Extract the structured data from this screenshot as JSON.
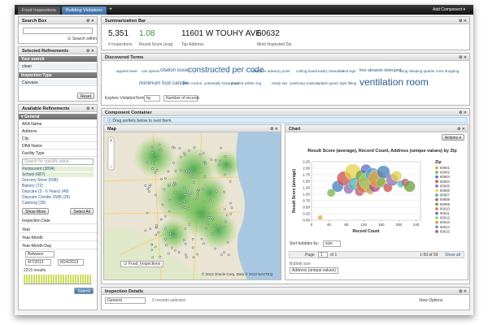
{
  "tabs": [
    "Food Inspections",
    "Building Violations"
  ],
  "add_component": "Add Component",
  "search_box": {
    "title": "Search Box",
    "search_within": "Search within"
  },
  "selected_refinements": {
    "title": "Selected Refinements",
    "your_search": "Your search",
    "term": "clean",
    "inspection_type": "Inspection Type",
    "type_value": "Canvass",
    "reset": "Reset"
  },
  "available_refinements": {
    "title": "Available Refinements",
    "general": "General",
    "fields": [
      "AKA Name",
      "Address",
      "City",
      "DBA Name",
      "Facility Type"
    ],
    "search_placeholder": "Search for specific value...",
    "values": [
      "Restaurant (3894)",
      "School (687)",
      "Grocery Store (598)",
      "Bakery (72)",
      "Daycare (3 - 6 Years) (49)",
      "Daycare Combo 1586 (29)",
      "Catering (30)"
    ],
    "show_more": "Show More",
    "select_all": "Select All",
    "inspection_date": "Inspection Date",
    "date_fields": [
      "Year",
      "Year-Month",
      "Year-Month-Day"
    ],
    "between": "Between",
    "from": "4/7/2013",
    "to": "8/24/2013",
    "results": "2215 results",
    "submit": "Submit"
  },
  "summarization": {
    "title": "Summarization Bar",
    "metrics": [
      {
        "value": "5,351",
        "label": "# Inspections"
      },
      {
        "value": "1.08",
        "label": "Result Score (avg)"
      },
      {
        "value": "11601 W TOUHY AVE",
        "label": "Top Address"
      },
      {
        "value": "60632",
        "label": "Most Inspected Zip"
      }
    ]
  },
  "discovered_terms": {
    "title": "Discovered Terms",
    "terms": [
      "apparel wear",
      "can opener",
      "citation issue",
      "constructed per code",
      "customer advisory point",
      "cutting board",
      "easily cleanable",
      "exit sign",
      "free abrasive detergent",
      "living sleeping quarter",
      "mice dropping",
      "minimum foot candle",
      "pest control",
      "potentially hazardous",
      "proofed written log",
      "ready eat",
      "sanitizing solution",
      "splash guard",
      "light fitting",
      "ventilation room"
    ],
    "explore": "Explore ViolationTerms",
    "by": "by",
    "measure": "Number of records"
  },
  "component_container": {
    "title": "Component Container",
    "hint": "Drag portlets below to nest them."
  },
  "map": {
    "title": "Map",
    "layer": "Food_Inspections",
    "credit": "© 2013 Oracle Corp, Data © 2013 NAVTEQ"
  },
  "chart": {
    "title": "Chart",
    "actions": "Actions",
    "chart_title": "Result Score (average), Record Count, Address (unique values) by Zip",
    "x_label": "Record Count",
    "y_label": "Result Score (average)",
    "xlim": [
      0,
      250
    ],
    "xticks": [
      0,
      40,
      80,
      120,
      160,
      200,
      240
    ],
    "ylim": [
      0,
      2.25
    ],
    "yticks": [
      {
        "value": 0,
        "label": "0.00"
      },
      0.25,
      {
        "value": 0.5,
        "label": "0.50"
      },
      0.75,
      {
        "value": 1,
        "label": "1.00"
      },
      1.25,
      {
        "value": 1.5,
        "label": "1.50"
      },
      1.75,
      {
        "value": 2,
        "label": "2.00"
      },
      2.25
    ],
    "legend_title": "Zip",
    "zips": [
      "60601",
      "60602",
      "60603",
      "60604",
      "60605",
      "60606",
      "60607",
      "60608",
      "60609",
      "60610",
      "60611",
      "60612",
      "60613",
      "60614",
      "60615"
    ],
    "colors": [
      "#e8a33a",
      "#7fb24d",
      "#3f7fbf",
      "#c94c4c",
      "#8c6bb1",
      "#e4d34a",
      "#4db3b3",
      "#b5557a",
      "#6d9e3a",
      "#d9773a",
      "#5a6fc2",
      "#9ccf6b",
      "#c2a24d",
      "#4f9bd9",
      "#a64d8c"
    ],
    "bubbles": {
      "x": [
        20,
        45,
        60,
        75,
        85,
        95,
        100,
        110,
        115,
        120,
        125,
        130,
        135,
        140,
        145,
        150,
        160,
        165,
        175,
        185,
        195,
        205,
        215,
        225
      ],
      "y": [
        0.1,
        1.05,
        1.3,
        1.6,
        1.2,
        1.85,
        1.4,
        1.1,
        1.7,
        1.35,
        1.95,
        1.5,
        1.15,
        1.75,
        1.3,
        1.6,
        1.45,
        1.85,
        1.25,
        1.55,
        1.7,
        1.4,
        1.45,
        1.3
      ],
      "size": [
        6,
        10,
        14,
        18,
        12,
        20,
        16,
        11,
        15,
        19,
        13,
        22,
        10,
        17,
        14,
        21,
        12,
        16,
        11,
        15,
        13,
        9,
        10,
        14
      ]
    },
    "sort_by": "Sort bubbles by:",
    "sort_value": "size",
    "page": "Page",
    "page_num": "1",
    "of": "of 1",
    "range": "1-59 of 59",
    "show_all": "Show all",
    "bubble_size": "Bubble size",
    "bubble_measure": "Address (unique values)"
  },
  "inspection_details": {
    "title": "Inspection Details",
    "view": "General",
    "selected": "0 records selected",
    "view_options": "View Options"
  }
}
